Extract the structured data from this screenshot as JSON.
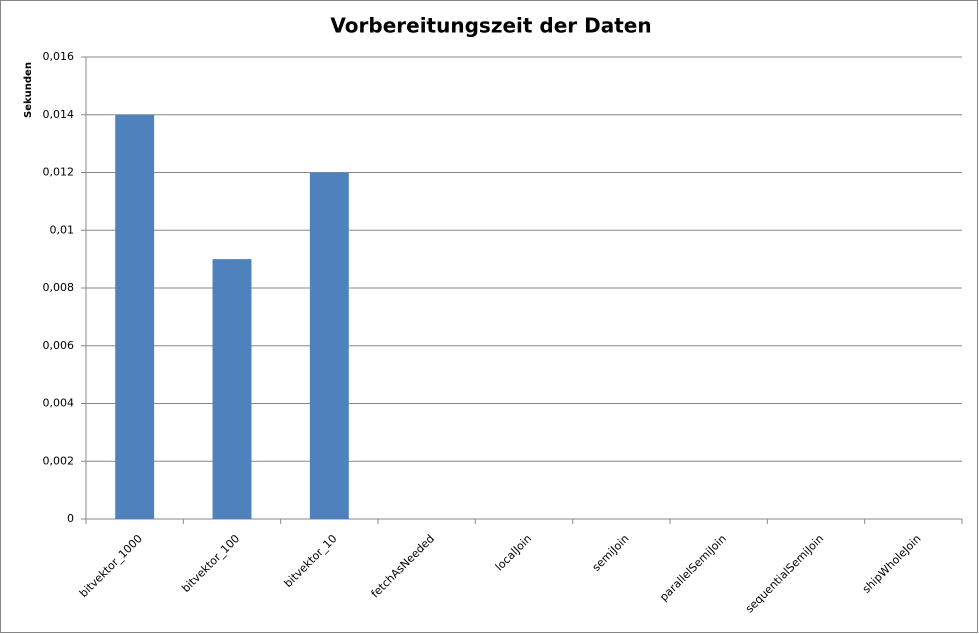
{
  "chart_data": {
    "type": "bar",
    "title": "Vorbereitungszeit der Daten",
    "y_label": "Sekunden",
    "categories": [
      "bitvektor_1000",
      "bitvektor_100",
      "bitvektor_10",
      "fetchAsNeeded",
      "localJoin",
      "semiJoin",
      "parallelSemiJoin",
      "sequentialSemiJoin",
      "shipWholeJoin"
    ],
    "values": [
      0.014,
      0.009,
      0.012,
      0,
      0,
      0,
      0,
      0,
      0
    ],
    "color": "#4f81bd",
    "ylim": [
      0,
      0.016
    ],
    "yticks": [
      0,
      {
        "value": 0.002,
        "label": "0,002"
      },
      {
        "value": 0.004,
        "label": "0,004"
      },
      {
        "value": 0.006,
        "label": "0,006"
      },
      {
        "value": 0.008,
        "label": "0,008"
      },
      {
        "value": 0.01,
        "label": "0,01"
      },
      {
        "value": 0.012,
        "label": "0,012"
      },
      {
        "value": 0.014,
        "label": "0,014"
      },
      {
        "value": 0.016,
        "label": "0,016"
      }
    ],
    "grid": true
  }
}
